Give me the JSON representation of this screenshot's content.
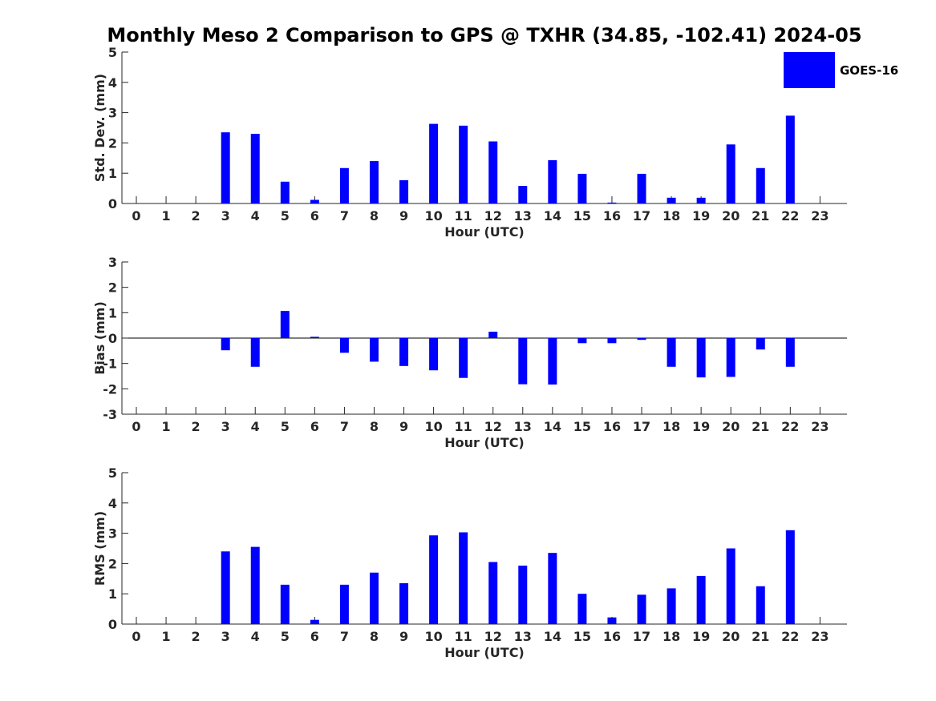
{
  "title": "Monthly Meso 2 Comparison to GPS @ TXHR (34.85, -102.41) 2024-05",
  "legend": {
    "entries": [
      {
        "name": "GOES-16",
        "color": "#0000ff"
      }
    ],
    "placement": "top-right"
  },
  "chart_data": [
    {
      "type": "bar",
      "xlabel": "Hour (UTC)",
      "ylabel": "Std. Dev. (mm)",
      "ylim": [
        0,
        5
      ],
      "yticks": [
        0,
        1,
        2,
        3,
        4,
        5
      ],
      "categories": [
        "0",
        "1",
        "2",
        "3",
        "4",
        "5",
        "6",
        "7",
        "8",
        "9",
        "10",
        "11",
        "12",
        "13",
        "14",
        "15",
        "16",
        "17",
        "18",
        "19",
        "20",
        "21",
        "22",
        "23"
      ],
      "series": [
        {
          "name": "GOES-16",
          "color": "#0000ff",
          "values": [
            null,
            null,
            null,
            2.35,
            2.3,
            0.72,
            0.12,
            1.17,
            1.4,
            0.77,
            2.63,
            2.57,
            2.05,
            0.58,
            1.43,
            0.98,
            0.03,
            0.98,
            0.19,
            0.19,
            1.95,
            1.17,
            2.9,
            null
          ]
        }
      ]
    },
    {
      "type": "bar",
      "xlabel": "Hour (UTC)",
      "ylabel": "Bias (mm)",
      "ylim": [
        -3,
        3
      ],
      "yticks": [
        -3,
        -2,
        -1,
        0,
        1,
        2,
        3
      ],
      "categories": [
        "0",
        "1",
        "2",
        "3",
        "4",
        "5",
        "6",
        "7",
        "8",
        "9",
        "10",
        "11",
        "12",
        "13",
        "14",
        "15",
        "16",
        "17",
        "18",
        "19",
        "20",
        "21",
        "22",
        "23"
      ],
      "series": [
        {
          "name": "GOES-16",
          "color": "#0000ff",
          "values": [
            null,
            null,
            null,
            -0.48,
            -1.13,
            1.07,
            0.05,
            -0.58,
            -0.93,
            -1.1,
            -1.27,
            -1.57,
            0.25,
            -1.82,
            -1.83,
            -0.2,
            -0.2,
            -0.07,
            -1.13,
            -1.55,
            -1.53,
            -0.45,
            -1.13,
            null
          ]
        }
      ]
    },
    {
      "type": "bar",
      "xlabel": "Hour (UTC)",
      "ylabel": "RMS (mm)",
      "ylim": [
        0,
        5
      ],
      "yticks": [
        0,
        1,
        2,
        3,
        4,
        5
      ],
      "categories": [
        "0",
        "1",
        "2",
        "3",
        "4",
        "5",
        "6",
        "7",
        "8",
        "9",
        "10",
        "11",
        "12",
        "13",
        "14",
        "15",
        "16",
        "17",
        "18",
        "19",
        "20",
        "21",
        "22",
        "23"
      ],
      "series": [
        {
          "name": "GOES-16",
          "color": "#0000ff",
          "values": [
            null,
            null,
            null,
            2.4,
            2.55,
            1.3,
            0.14,
            1.3,
            1.7,
            1.35,
            2.93,
            3.03,
            2.05,
            1.93,
            2.35,
            1.0,
            0.22,
            0.97,
            1.18,
            1.59,
            2.5,
            1.25,
            3.1,
            null
          ]
        }
      ]
    }
  ]
}
